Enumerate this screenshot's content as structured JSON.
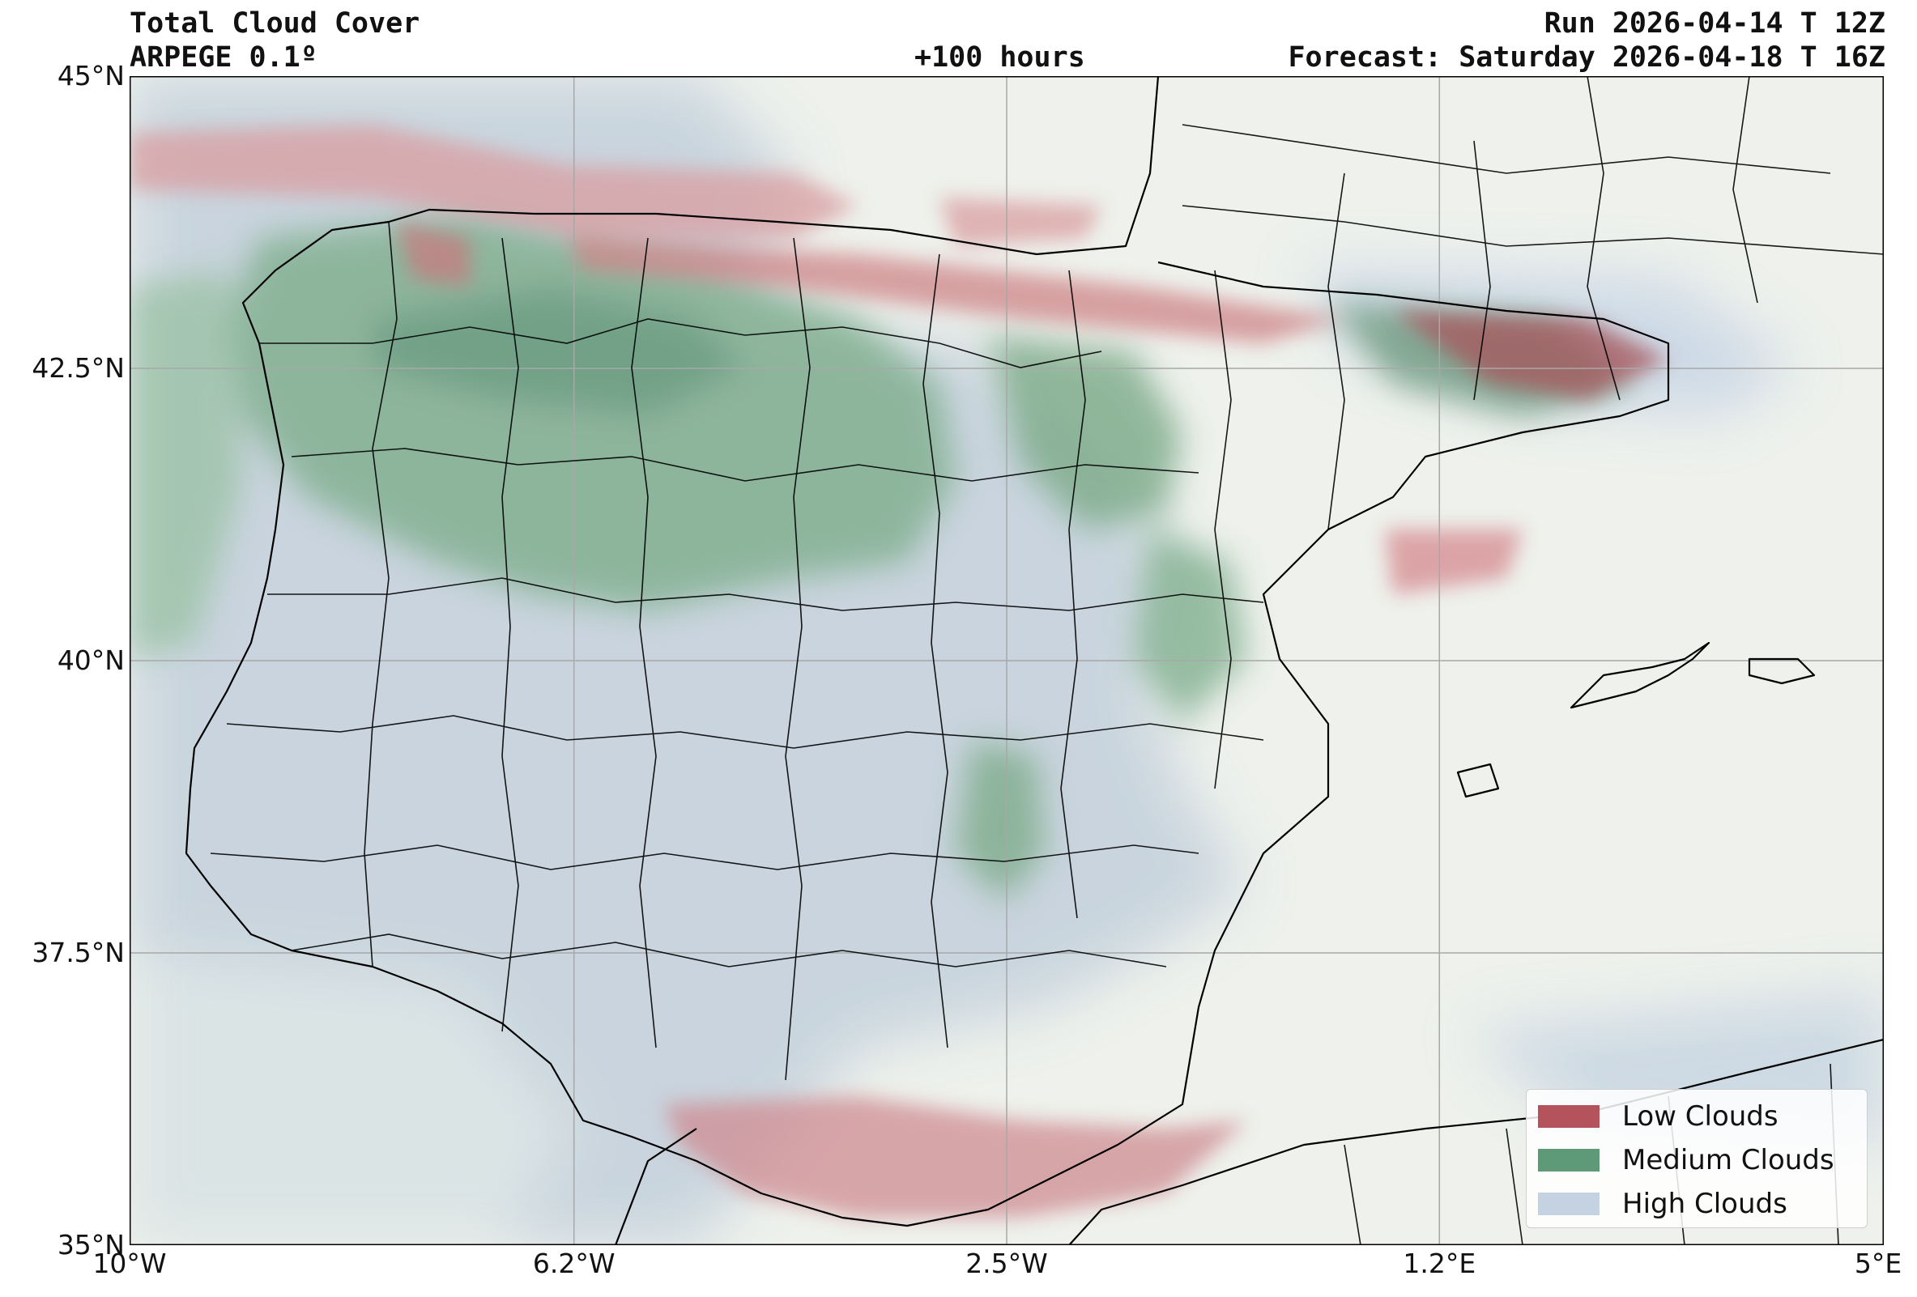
{
  "header": {
    "title": "Total Cloud Cover",
    "model": "ARPEGE 0.1º",
    "lead_time": "+100 hours",
    "run": "Run 2026-04-14 T 12Z",
    "forecast": "Forecast: Saturday 2026-04-18 T 16Z"
  },
  "axes": {
    "x_ticks": [
      {
        "label": "10°W",
        "lon": -10.0
      },
      {
        "label": "6.2°W",
        "lon": -6.2
      },
      {
        "label": "2.5°W",
        "lon": -2.5
      },
      {
        "label": "1.2°E",
        "lon": 1.2
      },
      {
        "label": "5°E",
        "lon": 5.0
      }
    ],
    "y_ticks": [
      {
        "label": "45°N",
        "lat": 45.0
      },
      {
        "label": "42.5°N",
        "lat": 42.5
      },
      {
        "label": "40°N",
        "lat": 40.0
      },
      {
        "label": "37.5°N",
        "lat": 37.5
      },
      {
        "label": "35°N",
        "lat": 35.0
      }
    ],
    "lon_range": [
      -10.0,
      5.0
    ],
    "lat_range": [
      35.0,
      45.0
    ],
    "grid": true
  },
  "legend": {
    "placement": "bottom-right",
    "items": [
      {
        "label": "Low Clouds",
        "color": "#b5535c"
      },
      {
        "label": "Medium Clouds",
        "color": "#5e9a78"
      },
      {
        "label": "High Clouds",
        "color": "#c5d2e2"
      }
    ]
  },
  "colors": {
    "background": "#f0f2ee",
    "coastline": "#000000",
    "grid": "#a8a8a8"
  }
}
